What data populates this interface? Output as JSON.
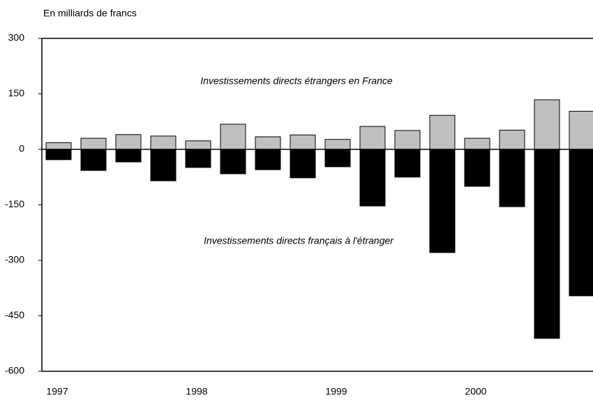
{
  "chart_data": {
    "type": "bar",
    "y_label": "En milliards de francs",
    "categories": [
      "1997",
      null,
      null,
      null,
      "1998",
      null,
      null,
      null,
      "1999",
      null,
      null,
      null,
      "2000",
      null,
      null,
      null
    ],
    "series": [
      {
        "name": "Investissements directs étrangers en France",
        "color": "#c0c0c0",
        "values": [
          18,
          30,
          40,
          36,
          23,
          68,
          34,
          39,
          27,
          62,
          51,
          92,
          30,
          52,
          134,
          103
        ]
      },
      {
        "name": "Investissements directs français à l'étranger",
        "color": "#000000",
        "values": [
          -28,
          -57,
          -34,
          -85,
          -49,
          -66,
          -55,
          -77,
          -47,
          -153,
          -75,
          -279,
          -100,
          -155,
          -511,
          -396
        ]
      }
    ],
    "ylim": [
      -600,
      300
    ],
    "yticks": [
      -600,
      -450,
      -300,
      -150,
      0,
      150,
      300
    ]
  }
}
